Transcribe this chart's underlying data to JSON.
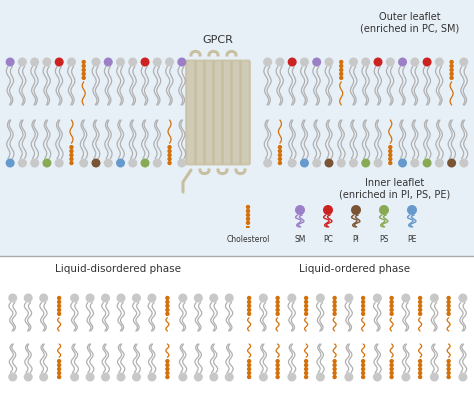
{
  "bg_color": "#ffffff",
  "top_bg": "#e8f0f7",
  "outer_leaflet_label": "Outer leaflet\n(enriched in PC, SM)",
  "inner_leaflet_label": "Inner leaflet\n(enriched in PI, PS, PE)",
  "gpcr_label": "GPCR",
  "liquid_disordered_label": "Liquid-disordered phase",
  "liquid_ordered_label": "Liquid-ordered phase",
  "legend_labels": [
    "Cholesterol",
    "SM",
    "PC",
    "PI",
    "PS",
    "PE"
  ],
  "chol_color": "#d4700a",
  "SM_color": "#9b7fc7",
  "PC_color": "#cc2222",
  "PI_color": "#7a5535",
  "PS_color": "#88aa55",
  "PE_color": "#6699cc",
  "gray_color": "#c8c8c8",
  "gpcr_color": "#c8bfa0",
  "tail_color_gray": "#b0b0b0",
  "tail_color_chol": "#d4700a"
}
